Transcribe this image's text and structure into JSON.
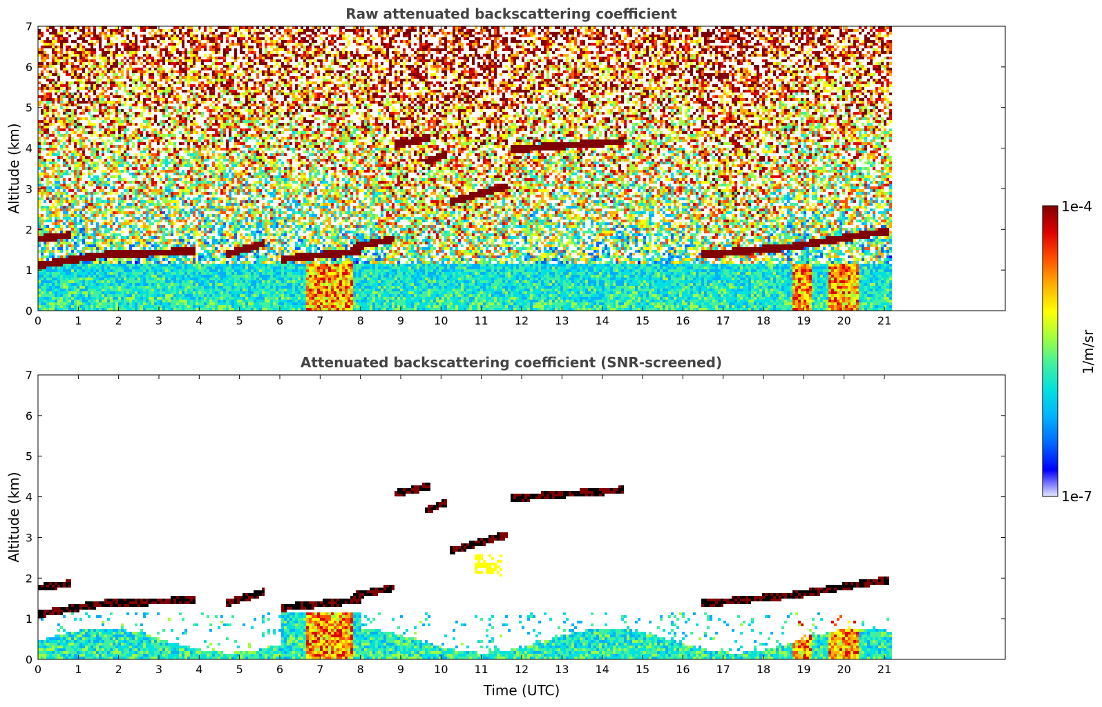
{
  "colormap": [
    "#ffffff",
    "#e8e8ff",
    "#0000ff",
    "#0066ff",
    "#00b0ff",
    "#00e0e0",
    "#40f0a0",
    "#a0ff40",
    "#ffff00",
    "#ffb000",
    "#ff5000",
    "#e00000",
    "#800000"
  ],
  "chart_data": [
    {
      "type": "heatmap",
      "title": "Raw attenuated backscattering coefficient",
      "xlabel": "",
      "ylabel": "Altitude (km)",
      "xlim": [
        0,
        24
      ],
      "ylim": [
        0,
        7
      ],
      "xticks": [
        "0",
        "1",
        "2",
        "3",
        "4",
        "5",
        "6",
        "7",
        "8",
        "9",
        "10",
        "11",
        "12",
        "13",
        "14",
        "15",
        "16",
        "17",
        "18",
        "19",
        "20",
        "21"
      ],
      "yticks": [
        "0",
        "1",
        "2",
        "3",
        "4",
        "5",
        "6",
        "7"
      ],
      "data_end_hour": 21.15,
      "screened": false,
      "features": {
        "cloud_layers": [
          {
            "x": [
              0.0,
              0.8
            ],
            "y": [
              1.8,
              1.9
            ]
          },
          {
            "x": [
              0.0,
              1.5
            ],
            "y": [
              1.15,
              1.4
            ]
          },
          {
            "x": [
              1.5,
              3.9
            ],
            "y": [
              1.4,
              1.5
            ]
          },
          {
            "x": [
              4.6,
              5.6
            ],
            "y": [
              1.4,
              1.7
            ]
          },
          {
            "x": [
              6.0,
              8.0
            ],
            "y": [
              1.3,
              1.5
            ]
          },
          {
            "x": [
              7.8,
              8.8
            ],
            "y": [
              1.6,
              1.8
            ]
          },
          {
            "x": [
              8.8,
              9.7
            ],
            "y": [
              4.1,
              4.3
            ]
          },
          {
            "x": [
              9.6,
              10.1
            ],
            "y": [
              3.7,
              3.9
            ]
          },
          {
            "x": [
              10.2,
              11.6
            ],
            "y": [
              2.7,
              3.1
            ]
          },
          {
            "x": [
              11.7,
              14.5
            ],
            "y": [
              4.0,
              4.2
            ]
          },
          {
            "x": [
              16.4,
              18.6
            ],
            "y": [
              1.4,
              1.6
            ]
          },
          {
            "x": [
              18.6,
              21.1
            ],
            "y": [
              1.6,
              2.0
            ]
          }
        ],
        "gap_hours": [
          16.35,
          16.45
        ]
      }
    },
    {
      "type": "heatmap",
      "title": "Attenuated backscattering coefficient (SNR-screened)",
      "xlabel": "Time (UTC)",
      "ylabel": "Altitude (km)",
      "xlim": [
        0,
        24
      ],
      "ylim": [
        0,
        7
      ],
      "xticks": [
        "0",
        "1",
        "2",
        "3",
        "4",
        "5",
        "6",
        "7",
        "8",
        "9",
        "10",
        "11",
        "12",
        "13",
        "14",
        "15",
        "16",
        "17",
        "18",
        "19",
        "20",
        "21"
      ],
      "yticks": [
        "0",
        "1",
        "2",
        "3",
        "4",
        "5",
        "6",
        "7"
      ],
      "data_end_hour": 21.15,
      "screened": true
    }
  ],
  "colorbar": {
    "label": "1/m/sr",
    "max_label": "1e-4",
    "min_label": "1e-7",
    "scale": "log",
    "range": [
      1e-07,
      0.0001
    ]
  }
}
